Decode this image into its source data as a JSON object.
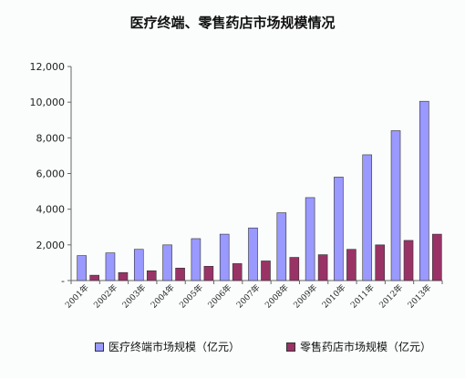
{
  "chart_data": {
    "type": "bar",
    "title": "医疗终端、零售药店市场规模情况",
    "xlabel": "",
    "ylabel": "",
    "categories": [
      "2001年",
      "2002年",
      "2003年",
      "2004年",
      "2005年",
      "2006年",
      "2007年",
      "2008年",
      "2009年",
      "2010年",
      "2011年",
      "2012年",
      "2013年"
    ],
    "series": [
      {
        "name": "医疗终端市场规模（亿元）",
        "color": "#9999ff",
        "values": [
          1400,
          1550,
          1750,
          2000,
          2350,
          2600,
          2950,
          3800,
          4650,
          5800,
          7050,
          8400,
          10050
        ]
      },
      {
        "name": "零售药店市场规模（亿元）",
        "color": "#993366",
        "values": [
          300,
          450,
          550,
          700,
          800,
          950,
          1100,
          1300,
          1450,
          1750,
          2000,
          2250,
          2600
        ]
      }
    ],
    "ylim": [
      0,
      12000
    ],
    "yticks": [
      "-",
      "2,000",
      "4,000",
      "6,000",
      "8,000",
      "10,000",
      "12,000"
    ],
    "grid": false,
    "legend_position": "bottom"
  }
}
